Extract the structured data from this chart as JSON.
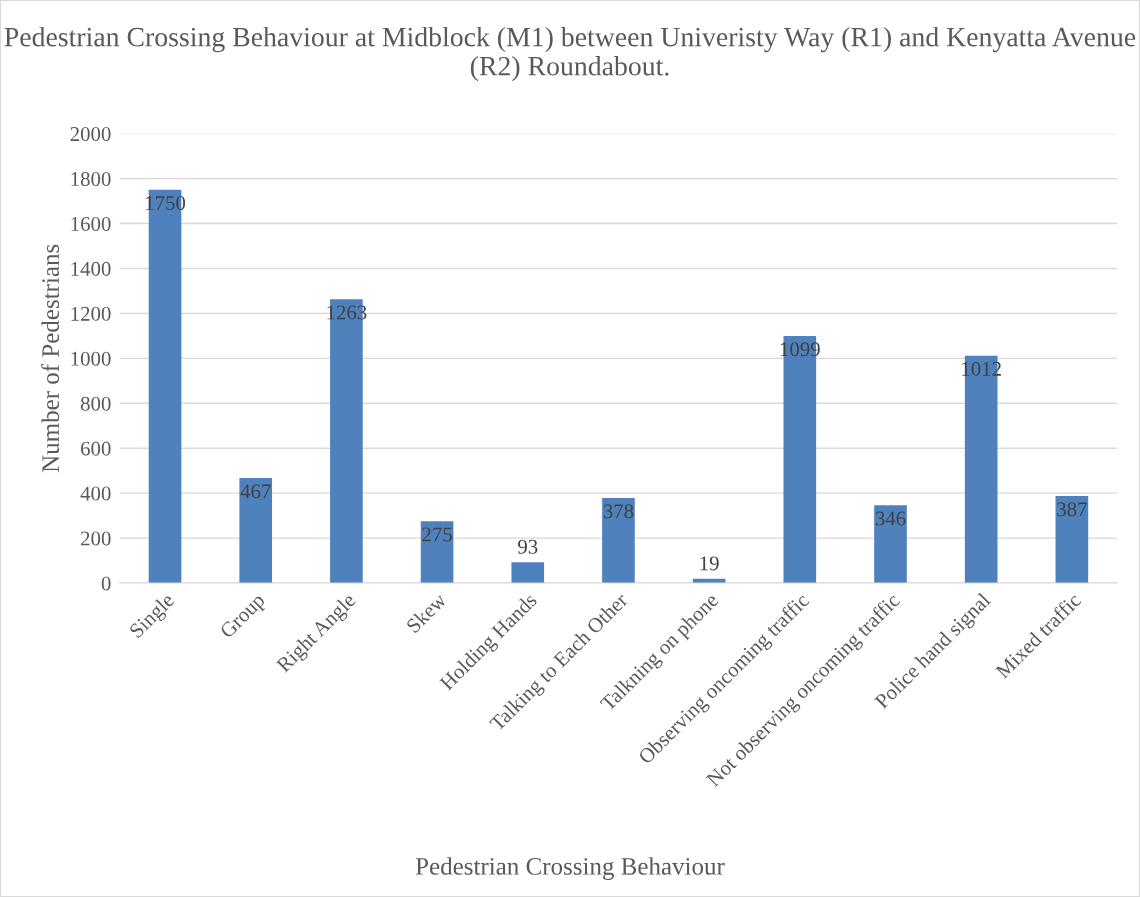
{
  "chart_data": {
    "type": "bar",
    "title": "Pedestrian Crossing Behaviour at Midblock (M1) between Univeristy Way (R1) and Kenyatta Avenue (R2) Roundabout.",
    "xlabel": "Pedestrian Crossing Behaviour",
    "ylabel": "Number of Pedestrians",
    "categories": [
      "Single",
      "Group",
      "Right Angle",
      "Skew",
      "Holding Hands",
      "Talking to Each Other",
      "Talkning on phone",
      "Observing oncoming traffic",
      "Not observing oncoming traffic",
      "Police hand signal",
      "Mixed traffic"
    ],
    "values": [
      1750,
      467,
      1263,
      275,
      93,
      378,
      19,
      1099,
      346,
      1012,
      387
    ],
    "color": "#4f81bd",
    "ylim": [
      0,
      2000
    ],
    "yticks": [
      0,
      200,
      400,
      600,
      800,
      1000,
      1200,
      1400,
      1600,
      1800,
      2000
    ],
    "grid": "y",
    "data_labels": true
  }
}
